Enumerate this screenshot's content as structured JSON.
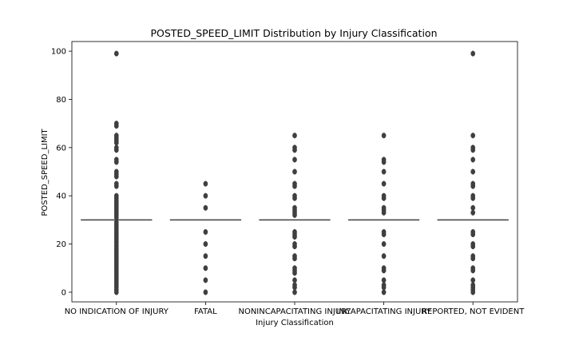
{
  "chart_data": {
    "type": "boxplot",
    "title": "POSTED_SPEED_LIMIT Distribution by Injury Classification",
    "xlabel": "Injury Classification",
    "ylabel": "POSTED_SPEED_LIMIT",
    "ylim": [
      -4,
      104
    ],
    "yticks": [
      0,
      20,
      40,
      60,
      80,
      100
    ],
    "grid": false,
    "categories": [
      "NO INDICATION OF INJURY",
      "FATAL",
      "NONINCAPACITATING INJURY",
      "INCAPACITATING INJURY",
      "REPORTED, NOT EVIDENT"
    ],
    "boxes": [
      {
        "category": "NO INDICATION OF INJURY",
        "q1": 30,
        "median": 30,
        "q3": 30,
        "whisker_low": 30,
        "whisker_high": 30,
        "outliers": [
          0,
          1,
          2,
          3,
          4,
          5,
          6,
          7,
          8,
          9,
          10,
          11,
          12,
          13,
          14,
          15,
          16,
          17,
          18,
          19,
          20,
          21,
          22,
          23,
          24,
          25,
          26,
          27,
          28,
          29,
          31,
          32,
          33,
          34,
          35,
          36,
          37,
          38,
          39,
          40,
          44,
          45,
          48,
          49,
          50,
          54,
          55,
          59,
          60,
          62,
          63,
          64,
          65,
          69,
          70,
          99
        ]
      },
      {
        "category": "FATAL",
        "q1": 30,
        "median": 30,
        "q3": 30,
        "whisker_low": 30,
        "whisker_high": 30,
        "outliers": [
          0,
          5,
          10,
          15,
          20,
          25,
          35,
          40,
          45
        ]
      },
      {
        "category": "NONINCAPACITATING INJURY",
        "q1": 30,
        "median": 30,
        "q3": 30,
        "whisker_low": 30,
        "whisker_high": 30,
        "outliers": [
          0,
          2,
          3,
          5,
          8,
          9,
          10,
          14,
          15,
          19,
          20,
          23,
          24,
          25,
          32,
          33,
          34,
          35,
          39,
          40,
          44,
          45,
          50,
          55,
          59,
          60,
          65
        ]
      },
      {
        "category": "INCAPACITATING INJURY",
        "q1": 30,
        "median": 30,
        "q3": 30,
        "whisker_low": 30,
        "whisker_high": 30,
        "outliers": [
          0,
          2,
          3,
          5,
          9,
          10,
          15,
          20,
          24,
          25,
          33,
          34,
          35,
          39,
          40,
          45,
          50,
          54,
          55,
          65
        ]
      },
      {
        "category": "REPORTED, NOT EVIDENT",
        "q1": 30,
        "median": 30,
        "q3": 30,
        "whisker_low": 30,
        "whisker_high": 30,
        "outliers": [
          0,
          1,
          2,
          3,
          5,
          9,
          10,
          14,
          15,
          19,
          20,
          24,
          25,
          33,
          35,
          39,
          40,
          44,
          45,
          50,
          55,
          59,
          60,
          65,
          99
        ]
      }
    ]
  }
}
